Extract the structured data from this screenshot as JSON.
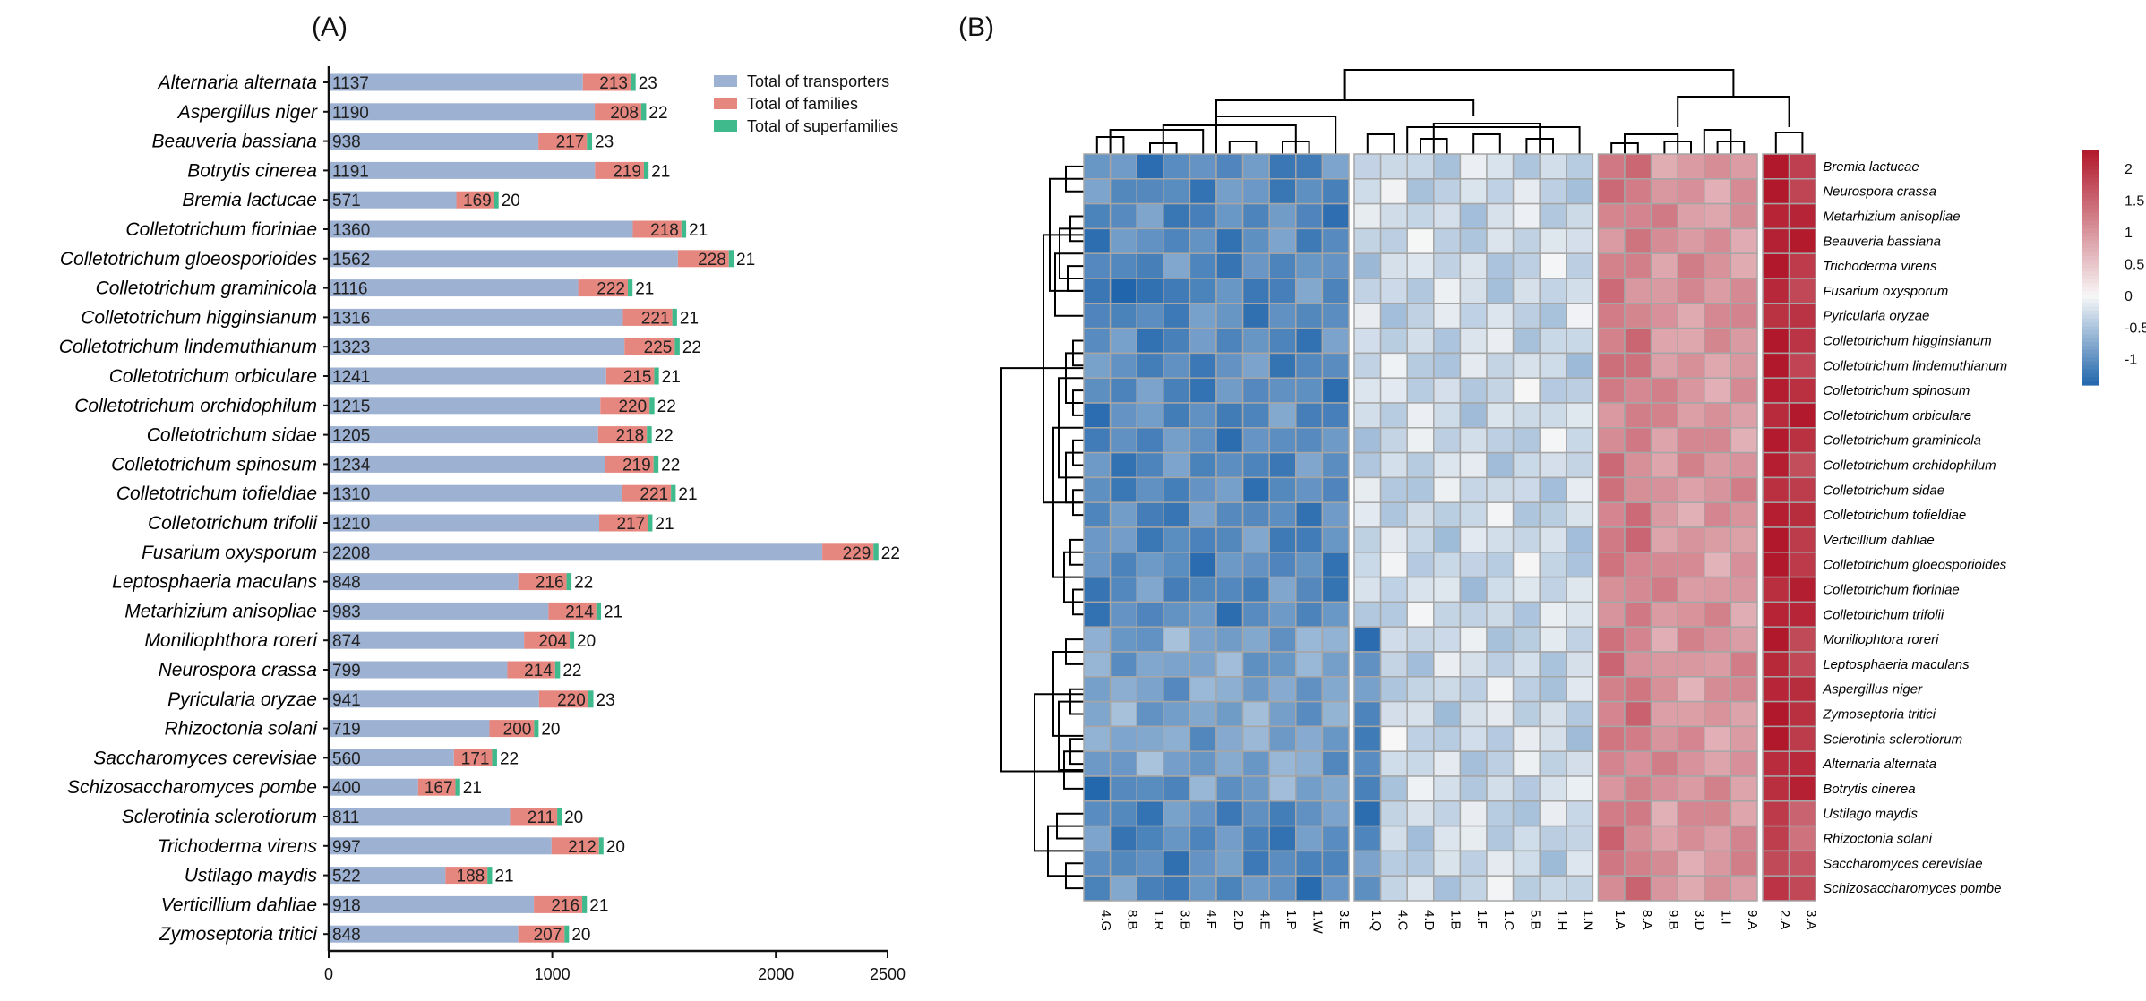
{
  "chart_data": [
    {
      "type": "bar",
      "panel": "(A)",
      "stacked": true,
      "orientation": "horizontal",
      "categories": [
        "Alternaria alternata",
        "Aspergillus niger",
        "Beauveria bassiana",
        "Botrytis cinerea",
        "Bremia lactucae",
        "Colletotrichum fioriniae",
        "Colletotrichum gloeosporioides",
        "Colletotrichum graminicola",
        "Colletotrichum higginsianum",
        "Colletotrichum lindemuthianum",
        "Colletotrichum orbiculare",
        "Colletotrichum orchidophilum",
        "Colletotrichum sidae",
        "Colletotrichum spinosum",
        "Colletotrichum tofieldiae",
        "Colletotrichum trifolii",
        "Fusarium oxysporum",
        "Leptosphaeria maculans",
        "Metarhizium anisopliae",
        "Moniliophthora roreri",
        "Neurospora crassa",
        "Pyricularia oryzae",
        "Rhizoctonia solani",
        "Saccharomyces cerevisiae",
        "Schizosaccharomyces pombe",
        "Sclerotinia sclerotiorum",
        "Trichoderma virens",
        "Ustilago maydis",
        "Verticillium dahliae",
        "Zymoseptoria tritici"
      ],
      "series": [
        {
          "name": "Total of transporters",
          "color": "#9db1d3",
          "values": [
            1137,
            1190,
            938,
            1191,
            571,
            1360,
            1562,
            1116,
            1316,
            1323,
            1241,
            1215,
            1205,
            1234,
            1310,
            1210,
            2208,
            848,
            983,
            874,
            799,
            941,
            719,
            560,
            400,
            811,
            997,
            522,
            918,
            848
          ]
        },
        {
          "name": "Total of families",
          "color": "#e6877f",
          "values": [
            213,
            208,
            217,
            219,
            169,
            218,
            228,
            222,
            221,
            225,
            215,
            220,
            218,
            219,
            221,
            217,
            229,
            216,
            214,
            204,
            214,
            220,
            200,
            171,
            167,
            211,
            212,
            188,
            216,
            207
          ]
        },
        {
          "name": "Total of superfamilies",
          "color": "#3fba8c",
          "values": [
            23,
            22,
            23,
            21,
            20,
            21,
            21,
            21,
            21,
            22,
            21,
            22,
            22,
            22,
            21,
            21,
            22,
            22,
            21,
            20,
            22,
            23,
            20,
            22,
            21,
            20,
            20,
            21,
            21,
            20
          ]
        }
      ],
      "x_ticks": [
        "0",
        "1000",
        "2000",
        "2500"
      ],
      "xlim": [
        0,
        2500
      ]
    },
    {
      "type": "heatmap",
      "panel": "(B)",
      "rows": [
        "Bremia lactucae",
        "Neurospora crassa",
        "Metarhizium anisopliae",
        "Beauveria bassiana",
        "Trichoderma virens",
        "Fusarium oxysporum",
        "Pyricularia oryzae",
        "Colletotrichum higginsianum",
        "Colletotrichum lindemuthianum",
        "Colletotrichum spinosum",
        "Colletotrichum orbiculare",
        "Colletotrichum graminicola",
        "Colletotrichum orchidophilum",
        "Colletotrichum sidae",
        "Colletotrichum tofieldiae",
        "Verticillium dahliae",
        "Colletotrichum gloeosporioides",
        "Colletotrichum fioriniae",
        "Colletotrichum trifolii",
        "Moniliophtora roreri",
        "Leptosphaeria maculans",
        "Aspergillus niger",
        "Zymoseptoria tritici",
        "Sclerotinia sclerotiorum",
        "Alternaria alternata",
        "Botrytis cinerea",
        "Ustilago maydis",
        "Rhizoctonia solani",
        "Saccharomyces cerevisiae",
        "Schizosaccharomyces pombe"
      ],
      "columns": [
        "4.G",
        "8.B",
        "1.R",
        "3.B",
        "4.F",
        "2.D",
        "4.E",
        "1.P",
        "1.W",
        "3.E",
        "1.Q",
        "4.C",
        "4.D",
        "1.B",
        "1.F",
        "1.C",
        "5.B",
        "1.H",
        "1.N",
        "1.A",
        "8.A",
        "9.B",
        "3.D",
        "1.I",
        "9.A",
        "2.A",
        "3.A"
      ],
      "column_groups": [
        10,
        9,
        6,
        2
      ],
      "color_scale": {
        "min": -1.4,
        "max": 2.3,
        "ticks": [
          "2",
          "1.5",
          "1",
          "0.5",
          "0",
          "-0.5",
          "-1"
        ],
        "low": "#2166ac",
        "mid": "#f7f7f7",
        "high": "#b2182b"
      }
    }
  ]
}
